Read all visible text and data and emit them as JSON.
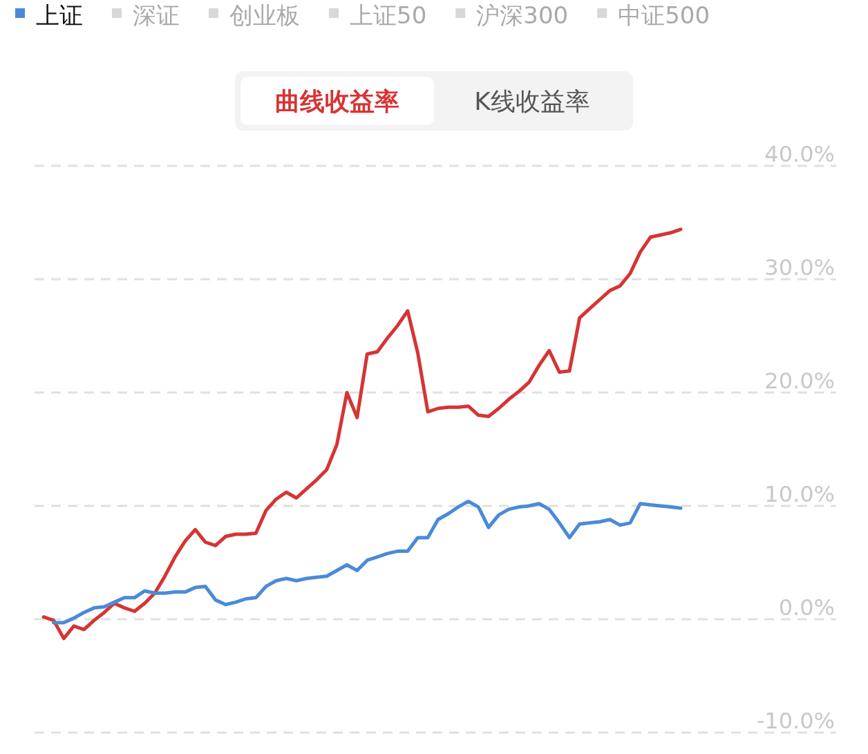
{
  "chart_data": {
    "type": "line",
    "categories": [
      null,
      null,
      null,
      null,
      null,
      null,
      null,
      null,
      null,
      null,
      null,
      null,
      null,
      null,
      null,
      null,
      null,
      null,
      null,
      null,
      null,
      null,
      null,
      null,
      null,
      null,
      null,
      null,
      null,
      null,
      null,
      null,
      null,
      null,
      null,
      null,
      null,
      null,
      null,
      null,
      null,
      null,
      null,
      null,
      null,
      null,
      null,
      null,
      null,
      null,
      null,
      null,
      null,
      null,
      null,
      null,
      null,
      null,
      null,
      null,
      null,
      null,
      null,
      null
    ],
    "series": [
      {
        "color": "#d63434",
        "values": [
          0.2,
          -0.1,
          -1.7,
          -0.6,
          -0.9,
          -0.1,
          0.6,
          1.4,
          1.0,
          0.7,
          1.4,
          2.3,
          3.8,
          5.5,
          6.9,
          7.9,
          6.8,
          6.5,
          7.3,
          7.5,
          7.5,
          7.6,
          9.6,
          10.6,
          11.2,
          10.7,
          11.5,
          12.3,
          13.2,
          15.4,
          20.0,
          17.8,
          23.4,
          23.6,
          24.8,
          25.9,
          27.2,
          23.5,
          18.3,
          18.6,
          18.7,
          18.7,
          18.8,
          18.0,
          17.9,
          18.6,
          19.4,
          20.1,
          20.9,
          22.4,
          23.7,
          21.8,
          21.9,
          26.6,
          27.4,
          28.2,
          29.0,
          29.4,
          30.5,
          32.4,
          33.7,
          33.9,
          34.1,
          34.4
        ]
      },
      {
        "name": "上证",
        "color": "#4a8ad8",
        "values": [
          null,
          -0.3,
          -0.3,
          0.1,
          0.6,
          1.0,
          1.1,
          1.5,
          1.9,
          1.9,
          2.5,
          2.3,
          2.3,
          2.4,
          2.4,
          2.8,
          2.9,
          1.7,
          1.3,
          1.5,
          1.8,
          1.9,
          2.9,
          3.4,
          3.6,
          3.4,
          3.6,
          3.7,
          3.8,
          4.3,
          4.8,
          4.3,
          5.2,
          5.5,
          5.8,
          6.0,
          6.0,
          7.2,
          7.2,
          8.8,
          9.3,
          9.9,
          10.4,
          9.9,
          8.1,
          9.2,
          9.7,
          9.9,
          10.0,
          10.2,
          9.7,
          8.5,
          7.2,
          8.4,
          8.5,
          8.6,
          8.8,
          8.3,
          8.5,
          10.2,
          10.1,
          10.0,
          9.9,
          9.8
        ]
      }
    ],
    "ylim": [
      -10,
      40
    ],
    "yticks": [
      {
        "value": 40,
        "label": "40.0%"
      },
      {
        "value": 30,
        "label": "30.0%"
      },
      {
        "value": 20,
        "label": "20.0%"
      },
      {
        "value": 10,
        "label": "10.0%"
      },
      {
        "value": 0,
        "label": "0.0%"
      },
      {
        "value": -10,
        "label": "-10.0%"
      }
    ],
    "grid": "y",
    "legend": "top left",
    "annotations": [
      "深证",
      "创业板",
      "上证50",
      "沪深300",
      "中证500",
      "曲线收益率",
      "K线收益率"
    ]
  }
}
